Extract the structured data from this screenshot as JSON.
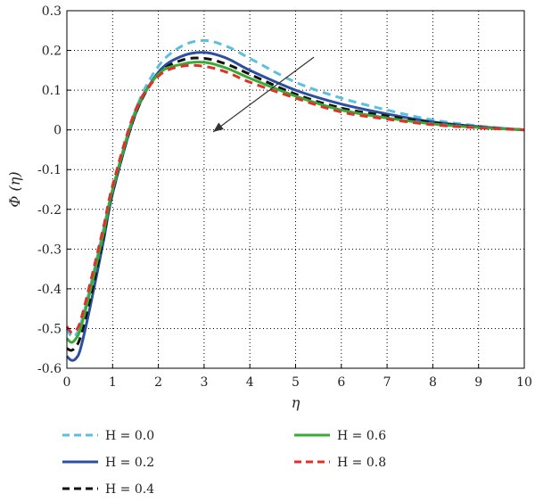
{
  "chart_data": {
    "type": "line",
    "xlabel": "η",
    "ylabel": "Φ (η)",
    "xlim": [
      0,
      10
    ],
    "ylim": [
      -0.6,
      0.3
    ],
    "grid": true,
    "grid_style": "dotted",
    "x_ticks": [
      "0",
      "1",
      "2",
      "3",
      "4",
      "5",
      "6",
      "7",
      "8",
      "9",
      "10"
    ],
    "y_ticks": [
      "0.3",
      "0.2",
      "0.1",
      "0",
      "-0.1",
      "-0.2",
      "-0.3",
      "-0.4",
      "-0.5",
      "-0.6"
    ],
    "legend_position": "below-plot",
    "annotation": "arrow indicating increasing H",
    "series": [
      {
        "name": "H = 0.0",
        "color": "#5bc0de",
        "style": "dashed",
        "x": [
          0,
          0.1,
          0.2,
          0.3,
          0.5,
          0.8,
          1.0,
          1.5,
          2.0,
          2.5,
          3.0,
          3.5,
          4.0,
          5.0,
          6.0,
          7.0,
          8.0,
          9.0,
          10.0
        ],
        "values": [
          -0.5,
          -0.52,
          -0.515,
          -0.49,
          -0.4,
          -0.25,
          -0.15,
          0.05,
          0.16,
          0.21,
          0.225,
          0.21,
          0.18,
          0.12,
          0.08,
          0.05,
          0.025,
          0.01,
          0.0
        ]
      },
      {
        "name": "H = 0.2",
        "color": "#2c4fa0",
        "style": "solid",
        "x": [
          0,
          0.1,
          0.2,
          0.3,
          0.5,
          0.8,
          1.0,
          1.5,
          2.0,
          2.5,
          3.0,
          3.5,
          4.0,
          5.0,
          6.0,
          7.0,
          8.0,
          9.0,
          10.0
        ],
        "values": [
          -0.57,
          -0.58,
          -0.575,
          -0.55,
          -0.45,
          -0.28,
          -0.16,
          0.04,
          0.145,
          0.185,
          0.195,
          0.18,
          0.15,
          0.1,
          0.065,
          0.04,
          0.02,
          0.008,
          0.0
        ]
      },
      {
        "name": "H = 0.4",
        "color": "#111111",
        "style": "dashed",
        "x": [
          0,
          0.1,
          0.2,
          0.3,
          0.5,
          0.8,
          1.0,
          1.5,
          2.0,
          2.5,
          3.0,
          3.5,
          4.0,
          5.0,
          6.0,
          7.0,
          8.0,
          9.0,
          10.0
        ],
        "values": [
          -0.55,
          -0.555,
          -0.545,
          -0.52,
          -0.43,
          -0.27,
          -0.155,
          0.04,
          0.14,
          0.175,
          0.18,
          0.165,
          0.14,
          0.09,
          0.055,
          0.035,
          0.018,
          0.007,
          0.0
        ]
      },
      {
        "name": "H = 0.6",
        "color": "#3aaa35",
        "style": "solid",
        "x": [
          0,
          0.1,
          0.2,
          0.3,
          0.5,
          0.8,
          1.0,
          1.5,
          2.0,
          2.5,
          3.0,
          3.5,
          4.0,
          5.0,
          6.0,
          7.0,
          8.0,
          9.0,
          10.0
        ],
        "values": [
          -0.525,
          -0.535,
          -0.525,
          -0.5,
          -0.41,
          -0.26,
          -0.15,
          0.045,
          0.14,
          0.165,
          0.17,
          0.155,
          0.13,
          0.085,
          0.05,
          0.03,
          0.015,
          0.006,
          0.0
        ]
      },
      {
        "name": "H = 0.8",
        "color": "#e0302b",
        "style": "dashed",
        "x": [
          0,
          0.1,
          0.2,
          0.3,
          0.5,
          0.8,
          1.0,
          1.5,
          2.0,
          2.5,
          3.0,
          3.5,
          4.0,
          5.0,
          6.0,
          7.0,
          8.0,
          9.0,
          10.0
        ],
        "values": [
          -0.495,
          -0.51,
          -0.505,
          -0.48,
          -0.39,
          -0.245,
          -0.14,
          0.05,
          0.135,
          0.16,
          0.16,
          0.145,
          0.12,
          0.08,
          0.045,
          0.027,
          0.013,
          0.005,
          0.0
        ]
      }
    ]
  }
}
